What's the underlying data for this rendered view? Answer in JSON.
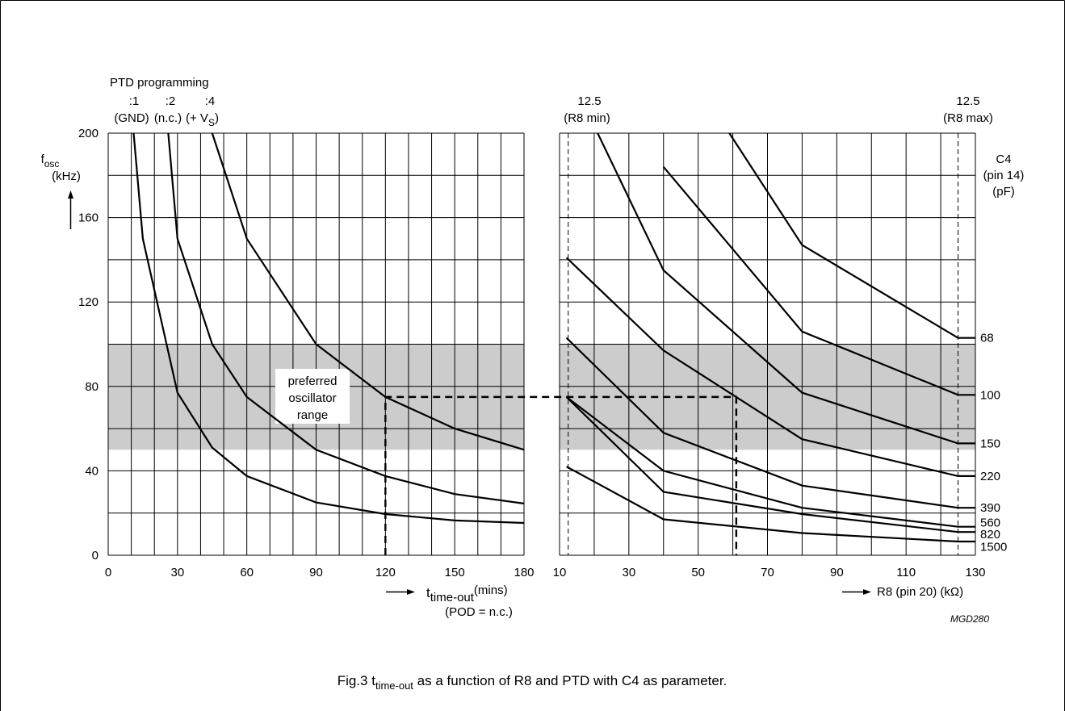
{
  "caption": {
    "prefix": "Fig.3",
    "t": "t",
    "sub": "time-out",
    "rest": "as a function of R8 and PTD with C4 as parameter."
  },
  "code": "MGD280",
  "shade_band": [
    50,
    100
  ],
  "chart_data": [
    {
      "type": "line",
      "y_label": {
        "f": "f",
        "sub": "osc",
        "unit": "(kHz)"
      },
      "x_label": {
        "t": "t",
        "sub": "time-out",
        "unit": "(mins)",
        "note": "(POD = n.c.)"
      },
      "xlim": [
        0,
        180
      ],
      "ylim": [
        0,
        200
      ],
      "x_ticks": [
        0,
        30,
        60,
        90,
        120,
        150,
        180
      ],
      "y_ticks": [
        0,
        40,
        80,
        120,
        160,
        200
      ],
      "shade_label": [
        "preferred",
        "oscillator",
        "range"
      ],
      "ptd_title": "PTD programming",
      "ptd_labels": [
        {
          "top": ":1",
          "bottom": "(GND)"
        },
        {
          "top": ":2",
          "bottom": "(n.c.)"
        },
        {
          "top": ":4",
          "bottom": "(+ V",
          "sub": "S",
          "close": ")"
        }
      ],
      "series": [
        {
          "name": ":1",
          "points": [
            [
              11,
              200
            ],
            [
              15,
              150
            ],
            [
              30,
              77
            ],
            [
              45,
              51
            ],
            [
              60,
              37.5
            ],
            [
              90,
              25
            ],
            [
              120,
              19.5
            ],
            [
              150,
              16.5
            ],
            [
              180,
              15.3
            ]
          ]
        },
        {
          "name": ":2",
          "points": [
            [
              26,
              200
            ],
            [
              30,
              150
            ],
            [
              45,
              100
            ],
            [
              60,
              75
            ],
            [
              90,
              50
            ],
            [
              120,
              37.5
            ],
            [
              150,
              29
            ],
            [
              180,
              24.5
            ]
          ]
        },
        {
          "name": ":4",
          "points": [
            [
              45,
              200
            ],
            [
              60,
              150
            ],
            [
              90,
              100
            ],
            [
              120,
              75
            ],
            [
              150,
              60
            ],
            [
              180,
              50
            ]
          ]
        }
      ]
    },
    {
      "type": "line",
      "x_label": {
        "text": "R8 (pin 20) (kΩ)"
      },
      "xlim": [
        10,
        130
      ],
      "ylim": [
        0,
        200
      ],
      "x_ticks": [
        10,
        30,
        50,
        70,
        90,
        110,
        130
      ],
      "r8_min": {
        "value": "12.5",
        "label": "(R8 min)"
      },
      "r8_max": {
        "value": "12.5",
        "label": "(R8 max)"
      },
      "c4_title": [
        "C4",
        "(pin 14)",
        "(pF)"
      ],
      "series": [
        {
          "name": "68",
          "points": [
            [
              59,
              200
            ],
            [
              80,
              147
            ],
            [
              125,
              103
            ],
            [
              130,
              103
            ]
          ]
        },
        {
          "name": "100",
          "points": [
            [
              40,
              184
            ],
            [
              80,
              106
            ],
            [
              125,
              76
            ],
            [
              130,
              76
            ]
          ]
        },
        {
          "name": "150",
          "points": [
            [
              21,
              200
            ],
            [
              40,
              135
            ],
            [
              80,
              77
            ],
            [
              125,
              53
            ],
            [
              130,
              53
            ]
          ]
        },
        {
          "name": "220",
          "points": [
            [
              12,
              141
            ],
            [
              40,
              97
            ],
            [
              80,
              55
            ],
            [
              125,
              37.5
            ],
            [
              130,
              37.5
            ]
          ]
        },
        {
          "name": "390",
          "points": [
            [
              12,
              103
            ],
            [
              40,
              58
            ],
            [
              80,
              33
            ],
            [
              125,
              22.5
            ],
            [
              130,
              22.5
            ]
          ]
        },
        {
          "name": "560",
          "points": [
            [
              12,
              75
            ],
            [
              40,
              40
            ],
            [
              80,
              22.5
            ],
            [
              125,
              13.5
            ],
            [
              130,
              13.5
            ]
          ]
        },
        {
          "name": "820",
          "points": [
            [
              12,
              75
            ],
            [
              40,
              30
            ],
            [
              80,
              19.5
            ],
            [
              125,
              11
            ],
            [
              130,
              11
            ]
          ]
        },
        {
          "name": "1500",
          "points": [
            [
              12,
              42
            ],
            [
              40,
              17
            ],
            [
              80,
              10.5
            ],
            [
              125,
              6.5
            ],
            [
              130,
              6.5
            ]
          ]
        }
      ],
      "c4_values": [
        {
          "label": "68",
          "y": 103
        },
        {
          "label": "100",
          "y": 76
        },
        {
          "label": "150",
          "y": 53
        },
        {
          "label": "220",
          "y": 37.5
        },
        {
          "label": "390",
          "y": 22.5
        },
        {
          "label": "560",
          "y": 15.5
        },
        {
          "label": "820",
          "y": 10
        },
        {
          "label": "1500",
          "y": 4
        }
      ]
    }
  ],
  "example": {
    "t_timeout": 120,
    "f_osc": 75,
    "r8": 61
  }
}
